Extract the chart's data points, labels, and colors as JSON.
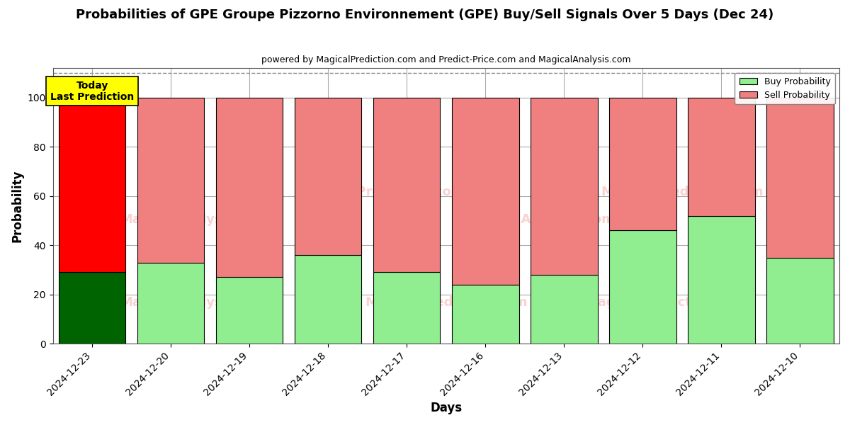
{
  "title": "Probabilities of GPE Groupe Pizzorno Environnement (GPE) Buy/Sell Signals Over 5 Days (Dec 24)",
  "subtitle": "powered by MagicalPrediction.com and Predict-Price.com and MagicalAnalysis.com",
  "xlabel": "Days",
  "ylabel": "Probability",
  "categories": [
    "2024-12-23",
    "2024-12-20",
    "2024-12-19",
    "2024-12-18",
    "2024-12-17",
    "2024-12-16",
    "2024-12-13",
    "2024-12-12",
    "2024-12-11",
    "2024-12-10"
  ],
  "buy_values": [
    29,
    33,
    27,
    36,
    29,
    24,
    28,
    46,
    52,
    35
  ],
  "sell_values": [
    71,
    67,
    73,
    64,
    71,
    76,
    72,
    54,
    48,
    65
  ],
  "today_buy_color": "#006400",
  "today_sell_color": "#ff0000",
  "buy_color": "#90ee90",
  "sell_color": "#f08080",
  "bar_edge_color": "#000000",
  "bar_linewidth": 0.8,
  "ylim": [
    0,
    112
  ],
  "yticks": [
    0,
    20,
    40,
    60,
    80,
    100
  ],
  "dashed_line_y": 110,
  "grid_color": "#aaaaaa",
  "legend_buy_color": "#90ee90",
  "legend_sell_color": "#f08080",
  "annotation_text": "Today\nLast Prediction",
  "annotation_bg": "#ffff00",
  "watermark_color": "#f08080",
  "watermark_alpha": 0.35,
  "figsize": [
    12,
    6
  ],
  "dpi": 100,
  "bar_width": 0.85
}
